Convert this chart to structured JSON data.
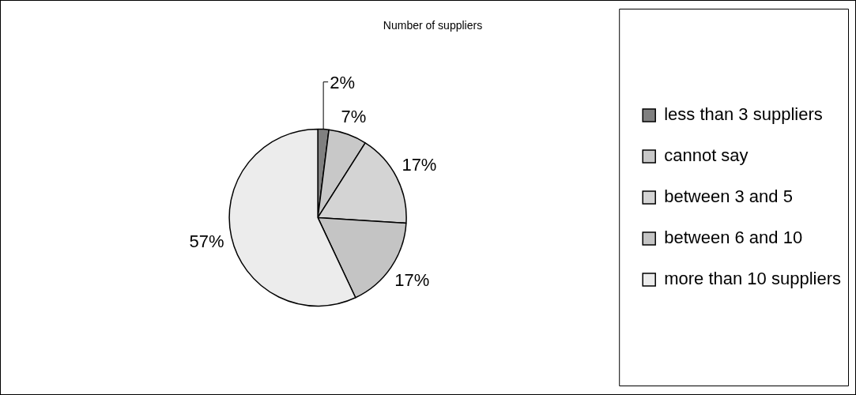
{
  "chart_data": {
    "type": "pie",
    "title": "Number of suppliers",
    "categories": [
      "less than 3 suppliers",
      "cannot say",
      "between 3 and 5",
      "between 6 and 10",
      "more than 10 suppliers"
    ],
    "values": [
      2,
      7,
      17,
      17,
      57
    ],
    "colors": [
      "#808080",
      "#c8c8c8",
      "#d4d4d4",
      "#c4c4c4",
      "#ececec"
    ],
    "value_labels": [
      "2%",
      "7%",
      "17%",
      "17%",
      "57%"
    ],
    "legend": "right"
  }
}
